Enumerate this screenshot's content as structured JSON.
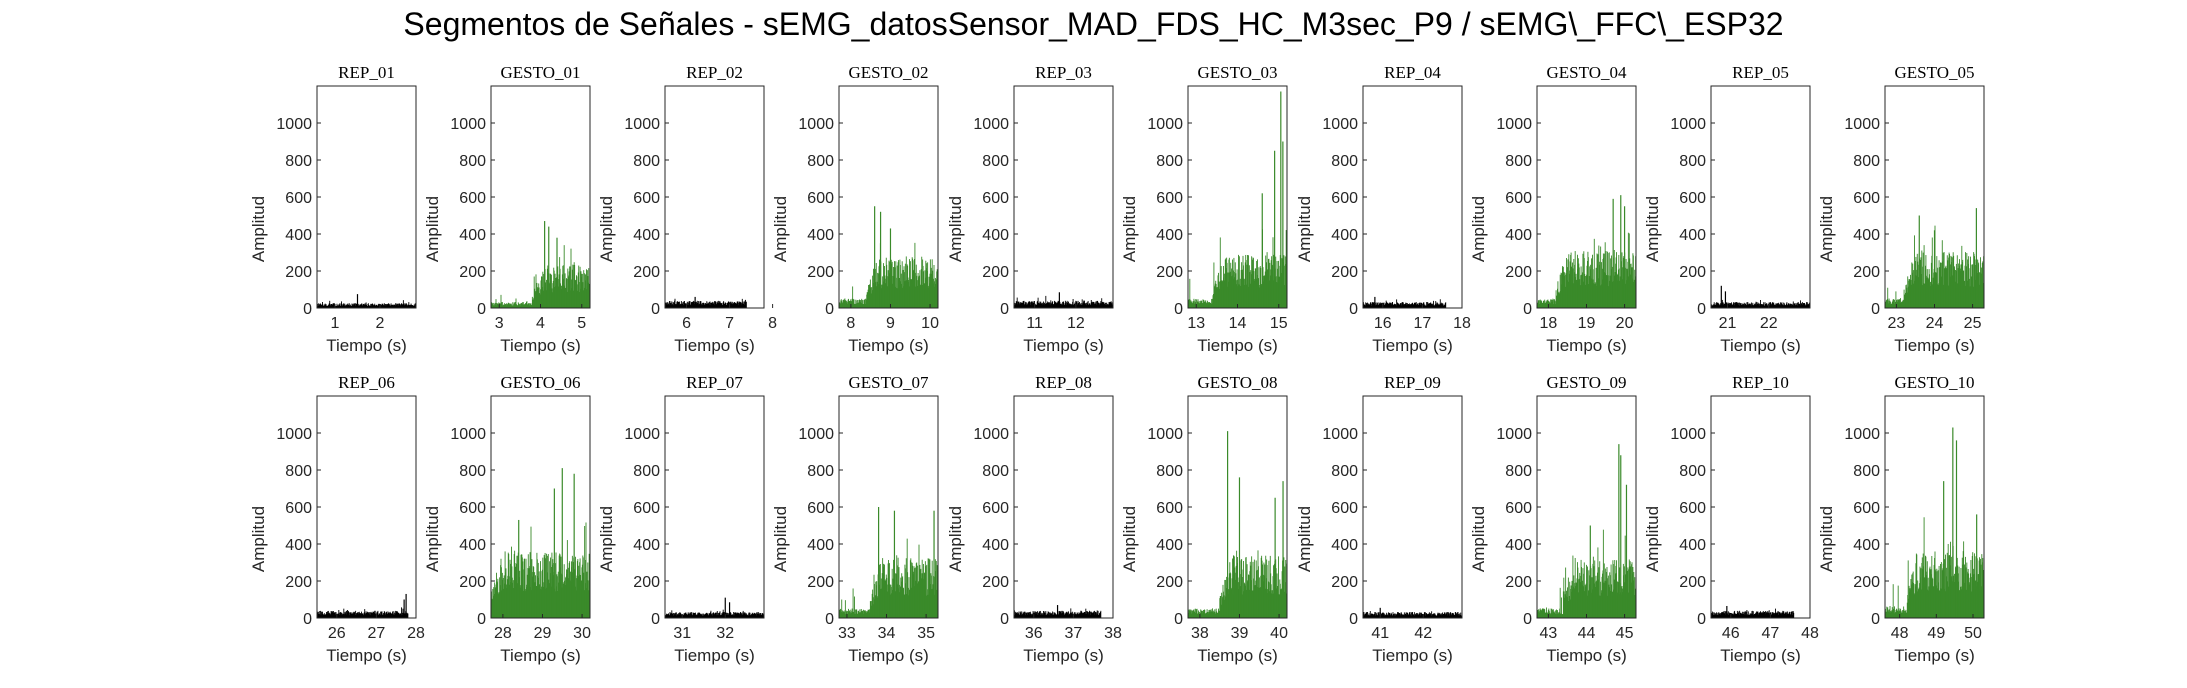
{
  "title": "Segmentos de Señales - sEMG_datosSensor_MAD_FDS_HC_M3sec_P9 / sEMG\\_FFC\\_ESP32",
  "colors": {
    "rep": "#000000",
    "gesto": "#3a8a2a",
    "axis": "#262626"
  },
  "chart_data": [
    {
      "type": "area",
      "title": "REP_01",
      "class": "rep",
      "xlabel": "Tiempo (s)",
      "ylabel": "Amplitud",
      "xlim": [
        0.6,
        2.8
      ],
      "ylim": [
        0,
        1200
      ],
      "xticks": [
        1,
        2
      ],
      "yticks": [
        0,
        200,
        400,
        600,
        800,
        1000
      ],
      "x_start": 0.6,
      "x_end": 2.8,
      "baseline": 20,
      "level": 30,
      "noise": [
        0,
        20,
        40,
        70,
        50,
        30
      ],
      "spikes": [
        {
          "x": 1.5,
          "y": 75
        }
      ]
    },
    {
      "type": "area",
      "title": "GESTO_01",
      "class": "gesto",
      "xlabel": "Tiempo (s)",
      "ylabel": "Amplitud",
      "xlim": [
        2.8,
        5.2
      ],
      "ylim": [
        0,
        1200
      ],
      "xticks": [
        3,
        4,
        5
      ],
      "yticks": [
        0,
        200,
        400,
        600,
        800,
        1000
      ],
      "x_start": 2.8,
      "x_end": 5.2,
      "baseline": 25,
      "onset": 3.8,
      "level": 170,
      "noise": [
        0,
        40,
        100,
        200,
        270,
        300
      ],
      "spikes": [
        {
          "x": 4.1,
          "y": 470
        },
        {
          "x": 4.2,
          "y": 440
        },
        {
          "x": 4.4,
          "y": 380
        }
      ]
    },
    {
      "type": "area",
      "title": "REP_02",
      "class": "rep",
      "xlabel": "Tiempo (s)",
      "ylabel": "Amplitud",
      "xlim": [
        5.5,
        7.8
      ],
      "ylim": [
        0,
        1200
      ],
      "xticks": [
        6,
        7,
        8
      ],
      "yticks": [
        0,
        200,
        400,
        600,
        800,
        1000
      ],
      "x_start": 5.5,
      "x_end": 7.4,
      "baseline": 30,
      "level": 35,
      "noise": [
        0,
        20,
        40,
        60,
        50,
        30
      ],
      "spikes": [
        {
          "x": 6.2,
          "y": 60
        }
      ]
    },
    {
      "type": "area",
      "title": "GESTO_02",
      "class": "gesto",
      "xlabel": "Tiempo (s)",
      "ylabel": "Amplitud",
      "xlim": [
        7.7,
        10.2
      ],
      "ylim": [
        0,
        1200
      ],
      "xticks": [
        8,
        9,
        10
      ],
      "yticks": [
        0,
        200,
        400,
        600,
        800,
        1000
      ],
      "x_start": 7.7,
      "x_end": 10.2,
      "baseline": 40,
      "onset": 8.4,
      "level": 190,
      "noise": [
        0,
        50,
        120,
        250,
        320,
        350
      ],
      "spikes": [
        {
          "x": 8.6,
          "y": 550
        },
        {
          "x": 8.75,
          "y": 520
        },
        {
          "x": 9.0,
          "y": 430
        }
      ]
    },
    {
      "type": "area",
      "title": "REP_03",
      "class": "rep",
      "xlabel": "Tiempo (s)",
      "ylabel": "Amplitud",
      "xlim": [
        10.5,
        12.9
      ],
      "ylim": [
        0,
        1200
      ],
      "xticks": [
        11,
        12
      ],
      "yticks": [
        0,
        200,
        400,
        600,
        800,
        1000
      ],
      "x_start": 10.5,
      "x_end": 12.9,
      "baseline": 30,
      "level": 45,
      "noise": [
        0,
        20,
        40,
        80,
        60,
        30
      ],
      "spikes": [
        {
          "x": 11.6,
          "y": 85
        }
      ]
    },
    {
      "type": "area",
      "title": "GESTO_03",
      "class": "gesto",
      "xlabel": "Tiempo (s)",
      "ylabel": "Amplitud",
      "xlim": [
        12.8,
        15.2
      ],
      "ylim": [
        0,
        1200
      ],
      "xticks": [
        13,
        14,
        15
      ],
      "yticks": [
        0,
        200,
        400,
        600,
        800,
        1000
      ],
      "x_start": 12.8,
      "x_end": 15.2,
      "baseline": 40,
      "onset": 13.4,
      "level": 200,
      "noise": [
        0,
        60,
        150,
        300,
        420,
        500
      ],
      "spikes": [
        {
          "x": 14.9,
          "y": 850
        },
        {
          "x": 15.05,
          "y": 1170
        },
        {
          "x": 15.1,
          "y": 900
        },
        {
          "x": 14.6,
          "y": 620
        }
      ]
    },
    {
      "type": "area",
      "title": "REP_04",
      "class": "rep",
      "xlabel": "Tiempo (s)",
      "ylabel": "Amplitud",
      "xlim": [
        15.5,
        18.0
      ],
      "ylim": [
        0,
        1200
      ],
      "xticks": [
        16,
        17,
        18
      ],
      "yticks": [
        0,
        200,
        400,
        600,
        800,
        1000
      ],
      "x_start": 15.5,
      "x_end": 17.6,
      "baseline": 25,
      "level": 35,
      "noise": [
        0,
        20,
        40,
        60,
        50,
        30
      ],
      "spikes": [
        {
          "x": 15.8,
          "y": 60
        }
      ]
    },
    {
      "type": "area",
      "title": "GESTO_04",
      "class": "gesto",
      "xlabel": "Tiempo (s)",
      "ylabel": "Amplitud",
      "xlim": [
        17.7,
        20.3
      ],
      "ylim": [
        0,
        1200
      ],
      "xticks": [
        18,
        19,
        20
      ],
      "yticks": [
        0,
        200,
        400,
        600,
        800,
        1000
      ],
      "x_start": 17.7,
      "x_end": 20.3,
      "baseline": 40,
      "onset": 18.2,
      "level": 220,
      "noise": [
        0,
        60,
        150,
        280,
        380,
        430
      ],
      "spikes": [
        {
          "x": 19.9,
          "y": 610
        },
        {
          "x": 19.7,
          "y": 590
        },
        {
          "x": 20.0,
          "y": 550
        }
      ]
    },
    {
      "type": "area",
      "title": "REP_05",
      "class": "rep",
      "xlabel": "Tiempo (s)",
      "ylabel": "Amplitud",
      "xlim": [
        20.6,
        23.0
      ],
      "ylim": [
        0,
        1200
      ],
      "xticks": [
        21,
        22
      ],
      "yticks": [
        0,
        200,
        400,
        600,
        800,
        1000
      ],
      "x_start": 20.6,
      "x_end": 23.0,
      "baseline": 25,
      "level": 35,
      "noise": [
        0,
        20,
        40,
        70,
        60,
        30
      ],
      "spikes": [
        {
          "x": 20.85,
          "y": 120
        },
        {
          "x": 20.95,
          "y": 90
        }
      ]
    },
    {
      "type": "area",
      "title": "GESTO_05",
      "class": "gesto",
      "xlabel": "Tiempo (s)",
      "ylabel": "Amplitud",
      "xlim": [
        22.7,
        25.3
      ],
      "ylim": [
        0,
        1200
      ],
      "xticks": [
        23,
        24,
        25
      ],
      "yticks": [
        0,
        200,
        400,
        600,
        800,
        1000
      ],
      "x_start": 22.7,
      "x_end": 25.3,
      "baseline": 40,
      "onset": 23.2,
      "level": 210,
      "noise": [
        0,
        60,
        140,
        260,
        330,
        380
      ],
      "spikes": [
        {
          "x": 23.6,
          "y": 500
        },
        {
          "x": 25.1,
          "y": 540
        },
        {
          "x": 24.0,
          "y": 420
        }
      ]
    },
    {
      "type": "area",
      "title": "REP_06",
      "class": "rep",
      "xlabel": "Tiempo (s)",
      "ylabel": "Amplitud",
      "xlim": [
        25.5,
        28.0
      ],
      "ylim": [
        0,
        1200
      ],
      "xticks": [
        26,
        27,
        28
      ],
      "yticks": [
        0,
        200,
        400,
        600,
        800,
        1000
      ],
      "x_start": 25.5,
      "x_end": 27.8,
      "baseline": 30,
      "level": 40,
      "noise": [
        0,
        20,
        40,
        60,
        50,
        30
      ],
      "spikes": [
        {
          "x": 27.75,
          "y": 130
        },
        {
          "x": 27.7,
          "y": 100
        }
      ]
    },
    {
      "type": "area",
      "title": "GESTO_06",
      "class": "gesto",
      "xlabel": "Tiempo (s)",
      "ylabel": "Amplitud",
      "xlim": [
        27.7,
        30.2
      ],
      "ylim": [
        0,
        1200
      ],
      "xticks": [
        28,
        29,
        30
      ],
      "yticks": [
        0,
        200,
        400,
        600,
        800,
        1000
      ],
      "x_start": 27.7,
      "x_end": 30.2,
      "baseline": 60,
      "onset": 27.7,
      "level": 240,
      "noise": [
        0,
        80,
        170,
        320,
        450,
        520
      ],
      "spikes": [
        {
          "x": 29.5,
          "y": 810
        },
        {
          "x": 29.8,
          "y": 780
        },
        {
          "x": 29.3,
          "y": 700
        },
        {
          "x": 28.4,
          "y": 530
        }
      ]
    },
    {
      "type": "area",
      "title": "REP_07",
      "class": "rep",
      "xlabel": "Tiempo (s)",
      "ylabel": "Amplitud",
      "xlim": [
        30.6,
        32.9
      ],
      "ylim": [
        0,
        1200
      ],
      "xticks": [
        31,
        32
      ],
      "yticks": [
        0,
        200,
        400,
        600,
        800,
        1000
      ],
      "x_start": 30.6,
      "x_end": 32.9,
      "baseline": 25,
      "level": 40,
      "noise": [
        0,
        20,
        40,
        70,
        60,
        30
      ],
      "spikes": [
        {
          "x": 32.0,
          "y": 110
        },
        {
          "x": 32.1,
          "y": 85
        }
      ]
    },
    {
      "type": "area",
      "title": "GESTO_07",
      "class": "gesto",
      "xlabel": "Tiempo (s)",
      "ylabel": "Amplitud",
      "xlim": [
        32.8,
        35.3
      ],
      "ylim": [
        0,
        1200
      ],
      "xticks": [
        33,
        34,
        35
      ],
      "yticks": [
        0,
        200,
        400,
        600,
        800,
        1000
      ],
      "x_start": 32.8,
      "x_end": 35.3,
      "baseline": 40,
      "onset": 33.6,
      "level": 230,
      "noise": [
        0,
        60,
        150,
        280,
        390,
        440
      ],
      "spikes": [
        {
          "x": 33.8,
          "y": 600
        },
        {
          "x": 34.2,
          "y": 580
        },
        {
          "x": 35.2,
          "y": 580
        }
      ]
    },
    {
      "type": "area",
      "title": "REP_08",
      "class": "rep",
      "xlabel": "Tiempo (s)",
      "ylabel": "Amplitud",
      "xlim": [
        35.5,
        38.0
      ],
      "ylim": [
        0,
        1200
      ],
      "xticks": [
        36,
        37,
        38
      ],
      "yticks": [
        0,
        200,
        400,
        600,
        800,
        1000
      ],
      "x_start": 35.5,
      "x_end": 37.7,
      "baseline": 30,
      "level": 40,
      "noise": [
        0,
        20,
        40,
        70,
        60,
        30
      ],
      "spikes": [
        {
          "x": 36.6,
          "y": 70
        }
      ]
    },
    {
      "type": "area",
      "title": "GESTO_08",
      "class": "gesto",
      "xlabel": "Tiempo (s)",
      "ylabel": "Amplitud",
      "xlim": [
        37.7,
        40.2
      ],
      "ylim": [
        0,
        1200
      ],
      "xticks": [
        38,
        39,
        40
      ],
      "yticks": [
        0,
        200,
        400,
        600,
        800,
        1000
      ],
      "x_start": 37.7,
      "x_end": 40.2,
      "baseline": 40,
      "onset": 38.5,
      "level": 240,
      "noise": [
        0,
        60,
        160,
        300,
        420,
        500
      ],
      "spikes": [
        {
          "x": 38.7,
          "y": 1010
        },
        {
          "x": 39.0,
          "y": 760
        },
        {
          "x": 40.1,
          "y": 740
        },
        {
          "x": 39.9,
          "y": 650
        }
      ]
    },
    {
      "type": "area",
      "title": "REP_09",
      "class": "rep",
      "xlabel": "Tiempo (s)",
      "ylabel": "Amplitud",
      "xlim": [
        40.6,
        42.9
      ],
      "ylim": [
        0,
        1200
      ],
      "xticks": [
        41,
        42
      ],
      "yticks": [
        0,
        200,
        400,
        600,
        800,
        1000
      ],
      "x_start": 40.6,
      "x_end": 42.9,
      "baseline": 25,
      "level": 35,
      "noise": [
        0,
        20,
        40,
        60,
        50,
        30
      ],
      "spikes": [
        {
          "x": 41.0,
          "y": 55
        }
      ]
    },
    {
      "type": "area",
      "title": "GESTO_09",
      "class": "gesto",
      "xlabel": "Tiempo (s)",
      "ylabel": "Amplitud",
      "xlim": [
        42.7,
        45.3
      ],
      "ylim": [
        0,
        1200
      ],
      "xticks": [
        43,
        44,
        45
      ],
      "yticks": [
        0,
        200,
        400,
        600,
        800,
        1000
      ],
      "x_start": 42.7,
      "x_end": 45.3,
      "baseline": 40,
      "onset": 43.4,
      "level": 220,
      "noise": [
        0,
        60,
        150,
        280,
        390,
        460
      ],
      "spikes": [
        {
          "x": 44.85,
          "y": 940
        },
        {
          "x": 44.9,
          "y": 880
        },
        {
          "x": 45.05,
          "y": 720
        },
        {
          "x": 44.1,
          "y": 500
        }
      ]
    },
    {
      "type": "area",
      "title": "REP_10",
      "class": "rep",
      "xlabel": "Tiempo (s)",
      "ylabel": "Amplitud",
      "xlim": [
        45.5,
        48.0
      ],
      "ylim": [
        0,
        1200
      ],
      "xticks": [
        46,
        47,
        48
      ],
      "yticks": [
        0,
        200,
        400,
        600,
        800,
        1000
      ],
      "x_start": 45.5,
      "x_end": 47.6,
      "baseline": 30,
      "level": 40,
      "noise": [
        0,
        20,
        40,
        60,
        50,
        30
      ],
      "spikes": [
        {
          "x": 45.9,
          "y": 65
        }
      ]
    },
    {
      "type": "area",
      "title": "GESTO_10",
      "class": "gesto",
      "xlabel": "Tiempo (s)",
      "ylabel": "Amplitud",
      "xlim": [
        47.6,
        50.3
      ],
      "ylim": [
        0,
        1200
      ],
      "xticks": [
        48,
        49,
        50
      ],
      "yticks": [
        0,
        200,
        400,
        600,
        800,
        1000
      ],
      "x_start": 47.6,
      "x_end": 50.3,
      "baseline": 50,
      "onset": 48.2,
      "level": 250,
      "noise": [
        0,
        70,
        170,
        320,
        460,
        560
      ],
      "spikes": [
        {
          "x": 49.45,
          "y": 1030
        },
        {
          "x": 49.55,
          "y": 960
        },
        {
          "x": 49.2,
          "y": 740
        },
        {
          "x": 50.1,
          "y": 560
        }
      ]
    }
  ]
}
